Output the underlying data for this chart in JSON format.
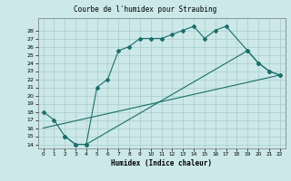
{
  "title": "Courbe de l'humidex pour Straubing",
  "xlabel": "Humidex (Indice chaleur)",
  "bg_color": "#cce8e8",
  "grid_color": "#aacccc",
  "line_color": "#1a6e6a",
  "line1_x": [
    0,
    1,
    2,
    3,
    4,
    5,
    6,
    7,
    8,
    9,
    10,
    11,
    12,
    13,
    14,
    15,
    16,
    17,
    19,
    20,
    21,
    22
  ],
  "line1_y": [
    18,
    17,
    15,
    14,
    14,
    21,
    22,
    25.5,
    26,
    27,
    27,
    27,
    27.5,
    28,
    28.5,
    27,
    28,
    28.5,
    25.5,
    24,
    23,
    22.5
  ],
  "line2_x": [
    2,
    3,
    4,
    19,
    20,
    21,
    22
  ],
  "line2_y": [
    15,
    14,
    14,
    25.5,
    24,
    23,
    22.5
  ],
  "line3_x": [
    0,
    22
  ],
  "line3_y": [
    16,
    22.5
  ],
  "ylim": [
    13.5,
    29.5
  ],
  "xlim": [
    -0.5,
    22.5
  ],
  "yticks": [
    14,
    15,
    16,
    17,
    18,
    19,
    20,
    21,
    22,
    23,
    24,
    25,
    26,
    27,
    28
  ],
  "xticks": [
    0,
    1,
    2,
    3,
    4,
    5,
    6,
    7,
    8,
    9,
    10,
    11,
    12,
    13,
    14,
    15,
    16,
    17,
    18,
    19,
    20,
    21,
    22
  ]
}
